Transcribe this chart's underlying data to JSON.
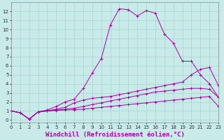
{
  "xlabel": "Windchill (Refroidissement éolien,°C)",
  "xlim": [
    0,
    23
  ],
  "ylim": [
    -0.3,
    13
  ],
  "xticks": [
    0,
    1,
    2,
    3,
    4,
    5,
    6,
    7,
    8,
    9,
    10,
    11,
    12,
    13,
    14,
    15,
    16,
    17,
    18,
    19,
    20,
    21,
    22,
    23
  ],
  "yticks": [
    0,
    1,
    2,
    3,
    4,
    5,
    6,
    7,
    8,
    9,
    10,
    11,
    12
  ],
  "bg_color": "#c8eae8",
  "grid_color": "#a8d4d0",
  "line_color": "#aa00aa",
  "lines": [
    [
      1.0,
      0.8,
      0.1,
      0.9,
      1.0,
      1.05,
      1.1,
      1.15,
      1.2,
      1.3,
      1.4,
      1.5,
      1.6,
      1.7,
      1.8,
      1.9,
      2.0,
      2.1,
      2.2,
      2.3,
      2.4,
      2.5,
      2.6,
      1.5
    ],
    [
      1.0,
      0.8,
      0.1,
      0.9,
      1.0,
      1.1,
      1.2,
      1.3,
      1.5,
      1.7,
      1.9,
      2.1,
      2.3,
      2.5,
      2.7,
      2.9,
      3.1,
      3.2,
      3.3,
      3.4,
      3.5,
      3.5,
      3.4,
      2.5
    ],
    [
      1.0,
      0.8,
      0.1,
      0.9,
      1.0,
      1.2,
      1.4,
      1.9,
      2.2,
      2.4,
      2.5,
      2.6,
      2.8,
      3.0,
      3.2,
      3.4,
      3.6,
      3.8,
      4.0,
      4.2,
      5.0,
      5.6,
      5.8,
      3.8
    ],
    [
      1.0,
      0.8,
      0.1,
      0.9,
      1.1,
      1.5,
      2.0,
      2.3,
      3.5,
      5.2,
      6.8,
      10.5,
      12.3,
      12.2,
      11.5,
      12.1,
      11.8,
      9.5,
      8.5,
      6.5,
      6.5,
      5.0,
      4.0,
      2.5
    ]
  ],
  "tick_fontsize": 5.0,
  "label_fontsize": 6.5
}
